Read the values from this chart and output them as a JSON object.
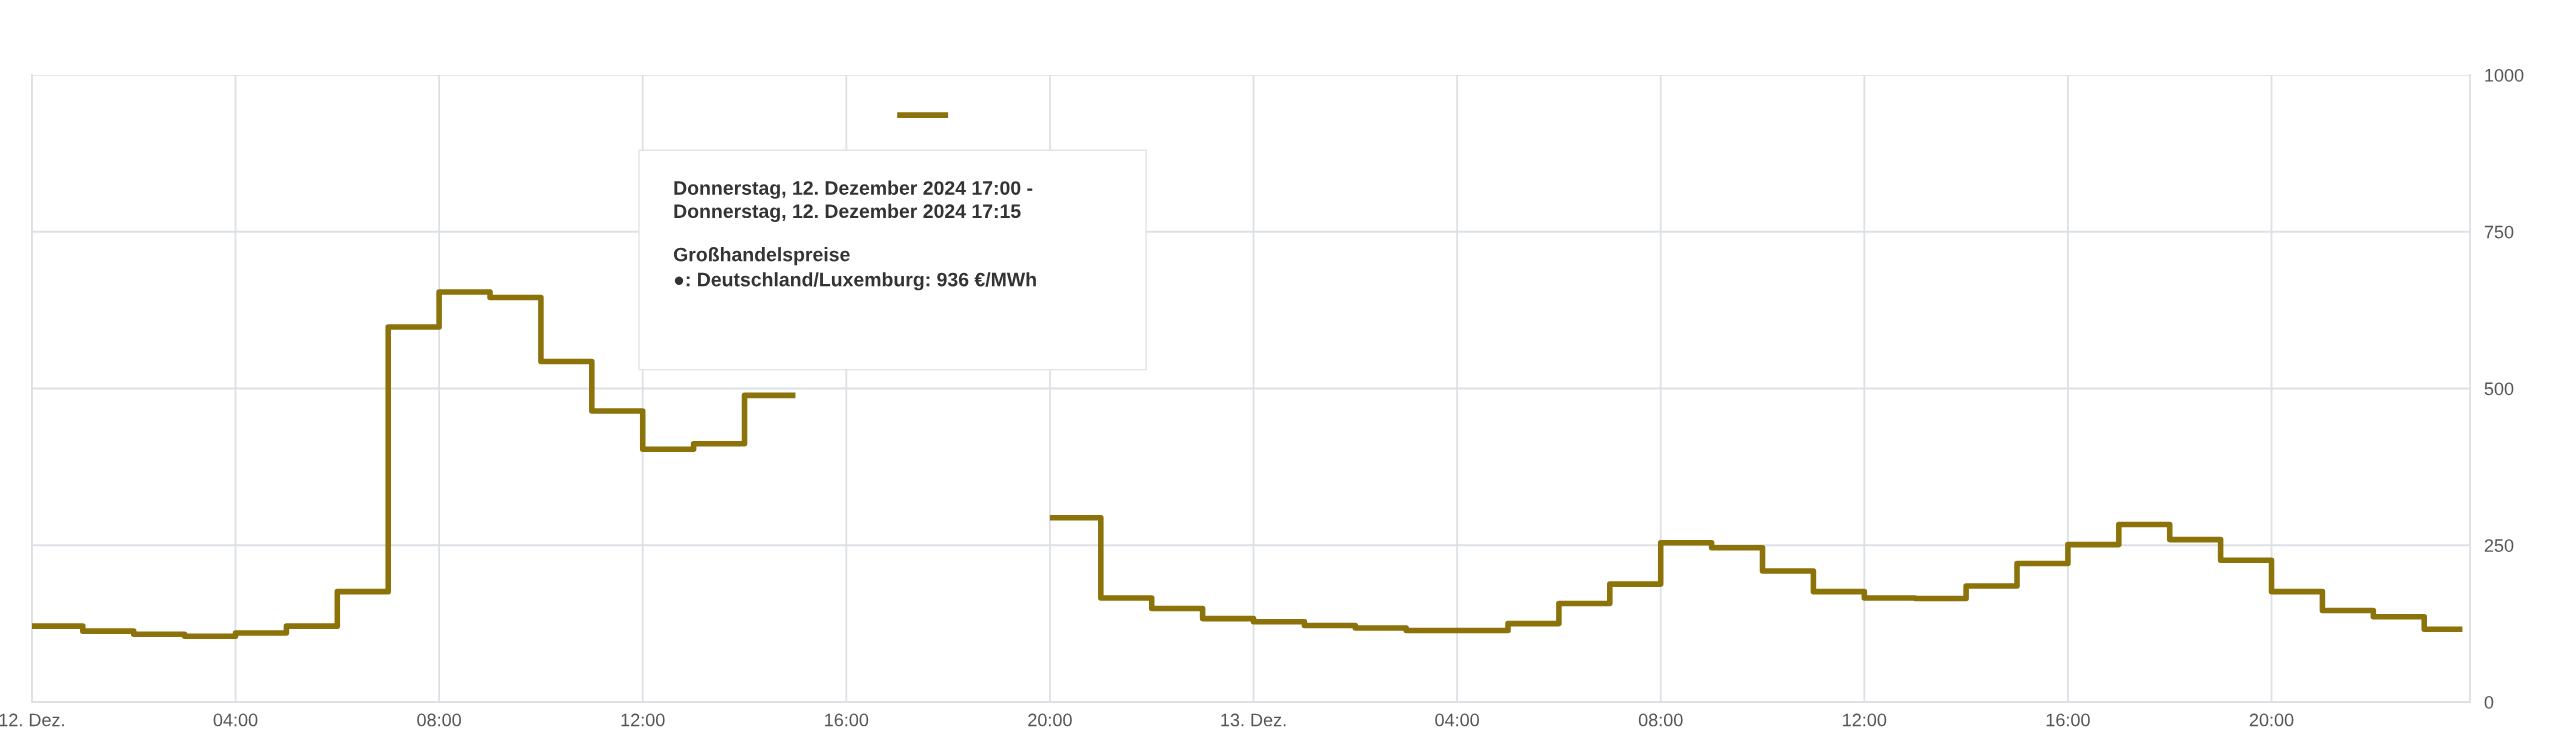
{
  "chart_data": {
    "type": "step",
    "x": [
      "2024-12-12T00:00",
      "2024-12-12T01:00",
      "2024-12-12T02:00",
      "2024-12-12T03:00",
      "2024-12-12T04:00",
      "2024-12-12T05:00",
      "2024-12-12T06:00",
      "2024-12-12T07:00",
      "2024-12-12T08:00",
      "2024-12-12T09:00",
      "2024-12-12T10:00",
      "2024-12-12T11:00",
      "2024-12-12T12:00",
      "2024-12-12T13:00",
      "2024-12-12T14:00",
      "2024-12-12T15:00",
      "2024-12-12T16:00",
      "2024-12-12T17:00",
      "2024-12-12T18:00",
      "2024-12-12T19:00",
      "2024-12-12T20:00",
      "2024-12-12T21:00",
      "2024-12-12T22:00",
      "2024-12-12T23:00",
      "2024-12-13T00:00",
      "2024-12-13T01:00",
      "2024-12-13T02:00",
      "2024-12-13T03:00",
      "2024-12-13T04:00",
      "2024-12-13T05:00",
      "2024-12-13T06:00",
      "2024-12-13T07:00",
      "2024-12-13T08:00",
      "2024-12-13T09:00",
      "2024-12-13T10:00",
      "2024-12-13T11:00",
      "2024-12-13T12:00",
      "2024-12-13T13:00",
      "2024-12-13T14:00",
      "2024-12-13T15:00",
      "2024-12-13T16:00",
      "2024-12-13T17:00",
      "2024-12-13T18:00",
      "2024-12-13T19:00",
      "2024-12-13T20:00",
      "2024-12-13T21:00",
      "2024-12-13T22:00",
      "2024-12-13T23:00",
      "2024-12-13T23:45"
    ],
    "series": [
      {
        "color": "#8b7209",
        "values": [
          121,
          113,
          108,
          105,
          110,
          121,
          176,
          598,
          654,
          645,
          543,
          464,
          403,
          412,
          489,
          null,
          null,
          936,
          null,
          null,
          294,
          166,
          149,
          133,
          128,
          122,
          118,
          114,
          114,
          125,
          157,
          188,
          254,
          246,
          209,
          176,
          166,
          165,
          185,
          221,
          251,
          283,
          259,
          226,
          176,
          146,
          136,
          116,
          116
        ]
      }
    ],
    "xlim": [
      "2024-12-12T00:00",
      "2024-12-13T23:54"
    ],
    "xticks": [
      {
        "value": "2024-12-12T00:00",
        "label": "12. Dez."
      },
      {
        "value": "2024-12-12T04:00",
        "label": "04:00"
      },
      {
        "value": "2024-12-12T08:00",
        "label": "08:00"
      },
      {
        "value": "2024-12-12T12:00",
        "label": "12:00"
      },
      {
        "value": "2024-12-12T16:00",
        "label": "16:00"
      },
      {
        "value": "2024-12-12T20:00",
        "label": "20:00"
      },
      {
        "value": "2024-12-13T00:00",
        "label": "13. Dez."
      },
      {
        "value": "2024-12-13T04:00",
        "label": "04:00"
      },
      {
        "value": "2024-12-13T08:00",
        "label": "08:00"
      },
      {
        "value": "2024-12-13T12:00",
        "label": "12:00"
      },
      {
        "value": "2024-12-13T16:00",
        "label": "16:00"
      },
      {
        "value": "2024-12-13T20:00",
        "label": "20:00"
      }
    ],
    "ylim": [
      0,
      1000
    ],
    "yticks": [
      0,
      250,
      500,
      750,
      1000
    ],
    "grid": true,
    "annotations": [
      "Donnerstag, 12. Dezember 2024 17:00 -",
      "Donnerstag, 12. Dezember 2024 17:15",
      "Großhandelspreise",
      "●: Deutschland/Luxemburg: 936 €/MWh"
    ]
  }
}
